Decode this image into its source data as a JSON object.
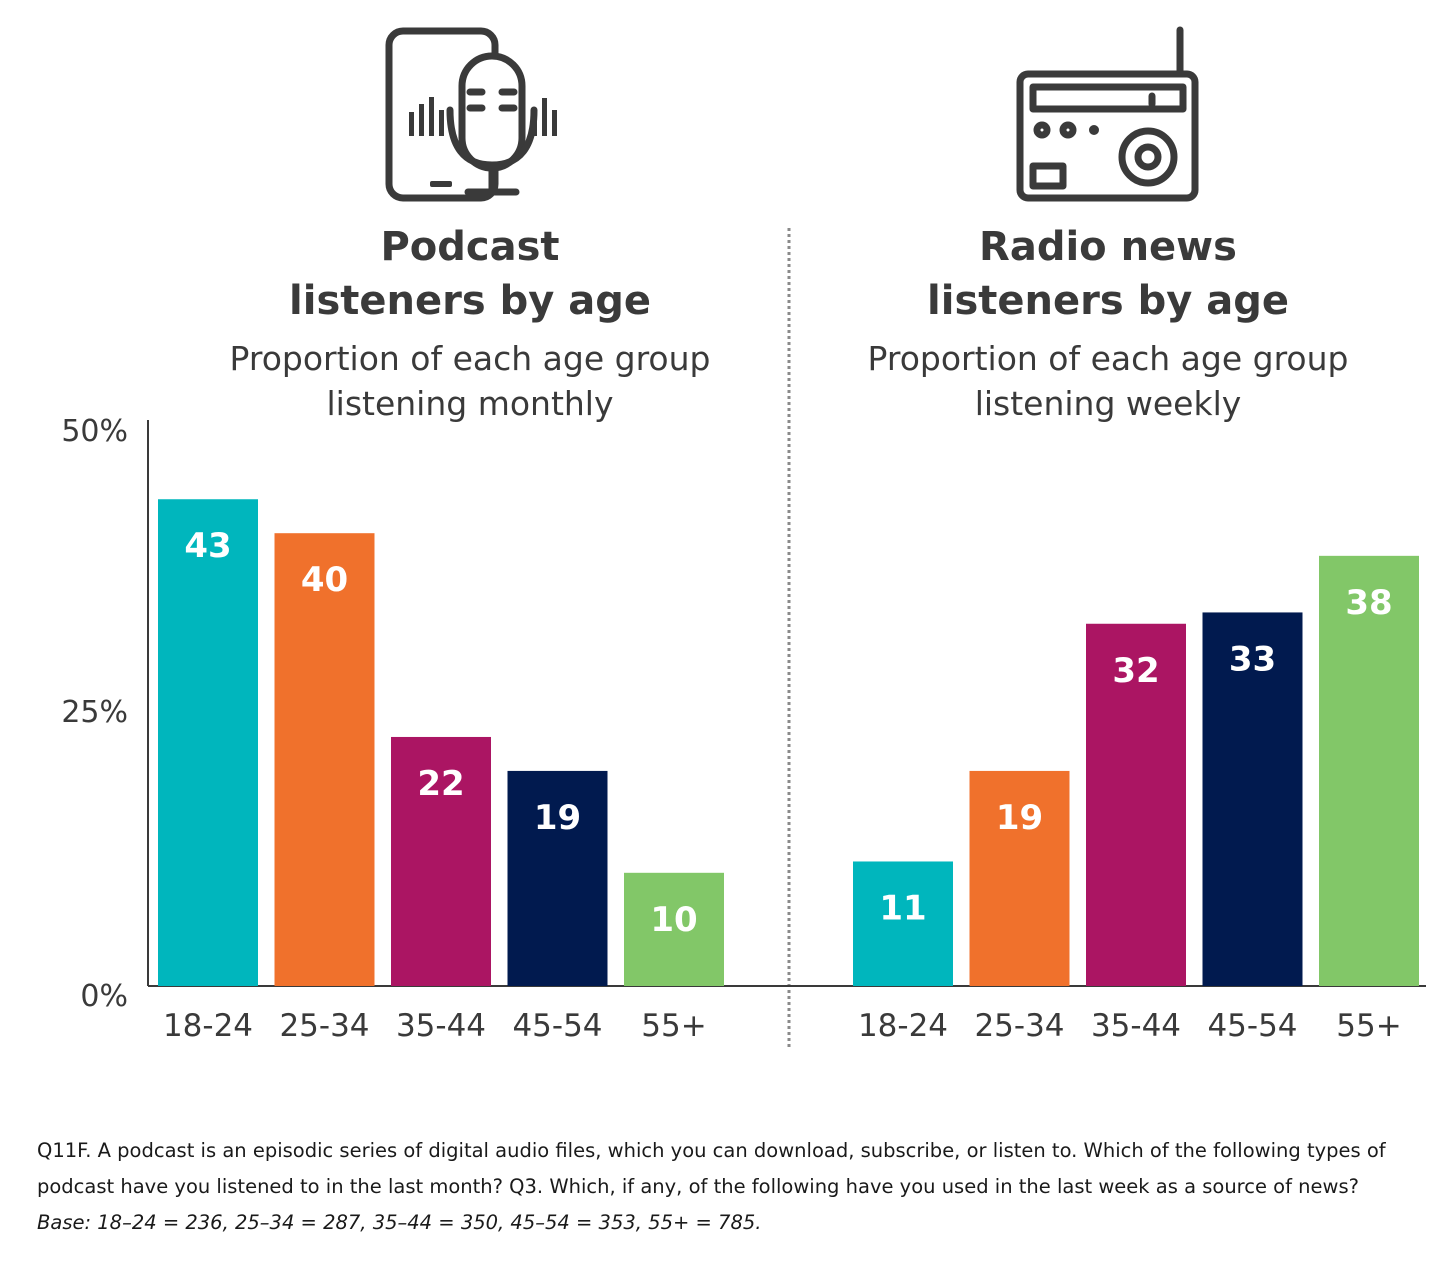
{
  "y_ticks": [
    "50%",
    "25%",
    "0%"
  ],
  "chart_data": [
    {
      "type": "bar",
      "title": [
        "Podcast",
        "listeners by age"
      ],
      "subtitle": [
        "Proportion of each age group",
        "listening monthly"
      ],
      "icon": "podcast-phone-microphone-icon",
      "categories": [
        "18-24",
        "25-34",
        "35-44",
        "45-54",
        "55+"
      ],
      "values": [
        43,
        40,
        22,
        19,
        10
      ],
      "value_labels": [
        "43",
        "40",
        "22",
        "19",
        "10"
      ],
      "ylim": [
        0,
        50
      ],
      "colors": [
        "#00b6bd",
        "#f0712c",
        "#ab1563",
        "#011a4f",
        "#82c768"
      ]
    },
    {
      "type": "bar",
      "title": [
        "Radio news",
        "listeners by age"
      ],
      "subtitle": [
        "Proportion of each age group",
        "listening weekly"
      ],
      "icon": "radio-icon",
      "categories": [
        "18-24",
        "25-34",
        "35-44",
        "45-54",
        "55+"
      ],
      "values": [
        11,
        19,
        32,
        33,
        38
      ],
      "value_labels": [
        "11",
        "19",
        "32",
        "33",
        "38"
      ],
      "ylim": [
        0,
        50
      ],
      "colors": [
        "#00b6bd",
        "#f0712c",
        "#ab1563",
        "#011a4f",
        "#82c768"
      ]
    }
  ],
  "footnote": {
    "question": "Q11F. A podcast is an episodic series of digital audio files, which you can download, subscribe, or listen to. Which of the following types of podcast have you listened to in the last month? Q3. Which, if any, of the following have you used in the last week as a source of news?",
    "base": "Base: 18–24 = 236, 25–34 = 287, 35–44 = 350, 45–54 = 353, 55+ = 785."
  }
}
